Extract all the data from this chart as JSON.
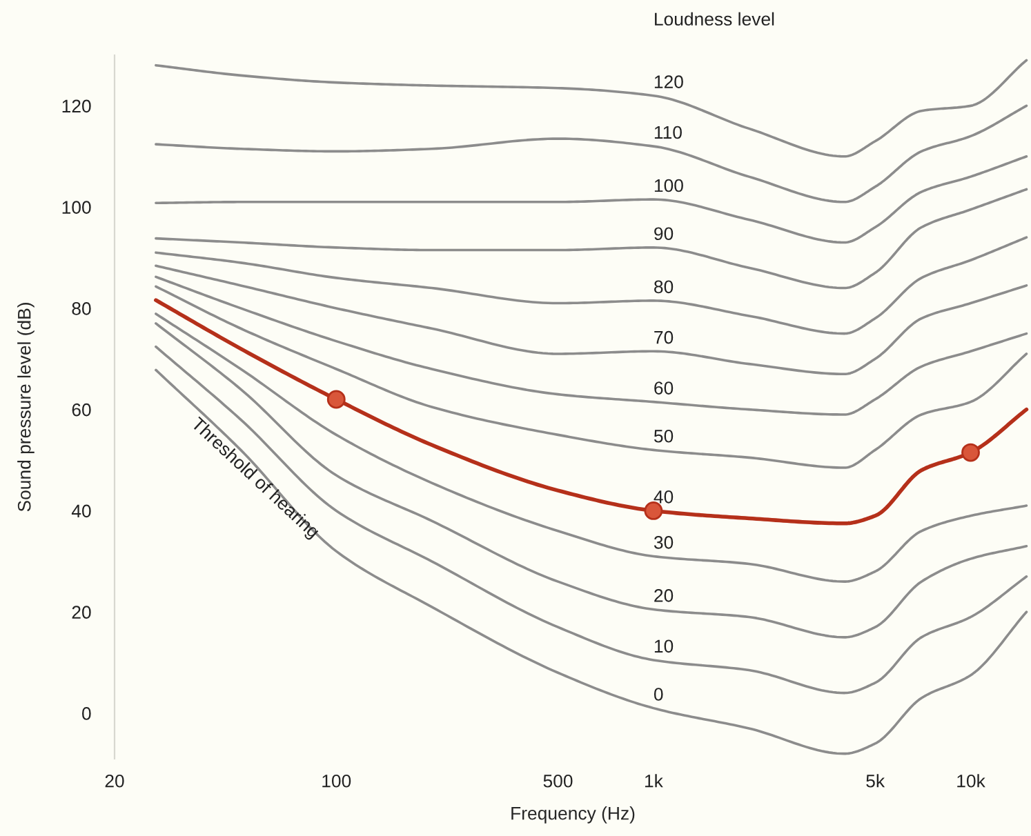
{
  "chart_data": {
    "type": "line",
    "xlabel": "Frequency (Hz)",
    "ylabel": "Sound pressure level (dB)",
    "legend_title": "Loudness level",
    "annotations": [
      "Threshold of hearing"
    ],
    "log": "x",
    "xlim": [
      20,
      15500
    ],
    "ylim": [
      -9,
      130
    ],
    "xticks": [
      20,
      100,
      500,
      {
        "value": 1000,
        "label": "1k"
      },
      {
        "value": 5000,
        "label": "5k"
      },
      {
        "value": 10000,
        "label": "10k"
      }
    ],
    "yticks": [
      0,
      20,
      40,
      60,
      80,
      100,
      120
    ],
    "grid": false,
    "legend": false,
    "line_style": "solid",
    "x": [
      27,
      50,
      100,
      200,
      500,
      1000,
      2000,
      4000,
      5000,
      7000,
      10000,
      15000
    ],
    "series": [
      {
        "name": "120",
        "color": "#8c8c8c",
        "values": [
          128,
          126,
          124.6,
          124,
          123.5,
          122,
          115.5,
          110,
          113,
          119,
          120,
          129
        ]
      },
      {
        "name": "110",
        "color": "#8c8c8c",
        "values": [
          112.4,
          111.5,
          111,
          111.5,
          113.5,
          112,
          106,
          101,
          104,
          111,
          114,
          120
        ]
      },
      {
        "name": "100",
        "color": "#8c8c8c",
        "values": [
          100.8,
          101,
          101,
          101,
          101,
          101.5,
          97.5,
          93,
          96,
          103,
          106,
          110
        ]
      },
      {
        "name": "90",
        "color": "#8c8c8c",
        "values": [
          93.8,
          93,
          92,
          91.5,
          91.5,
          92,
          88,
          84,
          87,
          96,
          99.5,
          103.5
        ]
      },
      {
        "name": "80",
        "color": "#8c8c8c",
        "values": [
          91,
          89,
          86,
          84,
          81,
          81.5,
          78.5,
          75,
          78,
          86,
          89.5,
          94
        ]
      },
      {
        "name": "70",
        "color": "#8c8c8c",
        "values": [
          88.4,
          84.5,
          80,
          76,
          71,
          71.5,
          69,
          67,
          70,
          78,
          81,
          84.5
        ]
      },
      {
        "name": "60",
        "color": "#8c8c8c",
        "values": [
          86.2,
          80,
          73.5,
          68,
          63,
          61.5,
          60,
          59,
          62,
          68.5,
          71.5,
          75
        ]
      },
      {
        "name": "50",
        "color": "#8c8c8c",
        "values": [
          84.3,
          76,
          68,
          60.5,
          55,
          52,
          50.5,
          48.5,
          52,
          59,
          61.5,
          71
        ]
      },
      {
        "name": "40",
        "color": "#b5301a",
        "values": [
          81.6,
          72,
          62,
          53,
          44,
          40,
          38.5,
          37.5,
          39,
          48,
          51.5,
          60
        ]
      },
      {
        "name": "30",
        "color": "#8c8c8c",
        "values": [
          78.9,
          68,
          55,
          45.5,
          36,
          31,
          29.5,
          26,
          28,
          36,
          39,
          41
        ]
      },
      {
        "name": "20",
        "color": "#8c8c8c",
        "values": [
          77,
          64,
          47,
          38,
          26,
          20.5,
          19,
          15,
          17,
          26,
          30.5,
          33
        ]
      },
      {
        "name": "10",
        "color": "#8c8c8c",
        "values": [
          72.4,
          58,
          40,
          30,
          17,
          10.5,
          8.5,
          4,
          6,
          15,
          19,
          27
        ]
      },
      {
        "name": "0",
        "color": "#8c8c8c",
        "values": [
          67.8,
          52,
          32,
          21,
          8,
          1,
          -3,
          -8,
          -6,
          3,
          7.5,
          20
        ]
      },
      {
        "type": "scatter",
        "color": "#d9563a",
        "marker": "circle",
        "x": [
          100,
          1000,
          10000
        ],
        "values": [
          62,
          40,
          51.5
        ]
      }
    ]
  }
}
